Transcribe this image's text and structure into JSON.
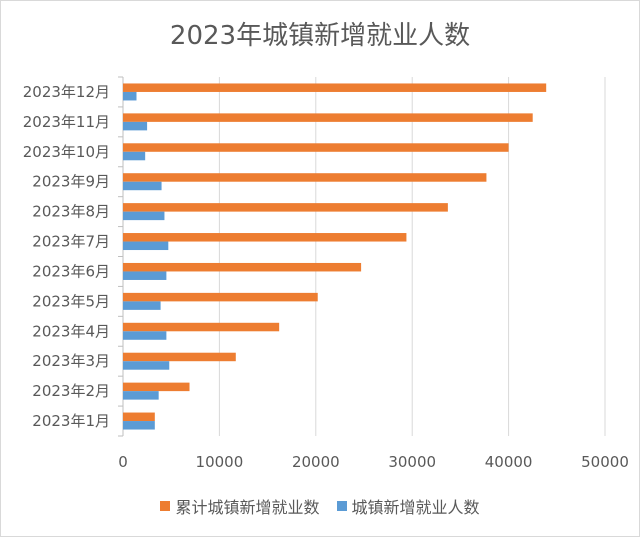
{
  "chart_data": {
    "type": "bar",
    "orientation": "horizontal",
    "title": "2023年城镇新增就业人数",
    "categories": [
      "2023年1月",
      "2023年2月",
      "2023年3月",
      "2023年4月",
      "2023年5月",
      "2023年6月",
      "2023年7月",
      "2023年8月",
      "2023年9月",
      "2023年10月",
      "2023年11月",
      "2023年12月"
    ],
    "series": [
      {
        "name": "累计城镇新增就业数",
        "color": "#ed7d31",
        "values": [
          3300,
          6900,
          11700,
          16200,
          20200,
          24700,
          29400,
          33700,
          37700,
          40000,
          42500,
          43900
        ]
      },
      {
        "name": "城镇新增就业人数",
        "color": "#5b9bd5",
        "values": [
          3300,
          3700,
          4800,
          4500,
          3900,
          4500,
          4700,
          4300,
          4000,
          2300,
          2500,
          1400
        ]
      }
    ],
    "xlim": [
      0,
      50000
    ],
    "xticks": [
      "0",
      "10000",
      "20000",
      "30000",
      "40000",
      "50000"
    ],
    "grid": true,
    "legend_position": "bottom"
  }
}
